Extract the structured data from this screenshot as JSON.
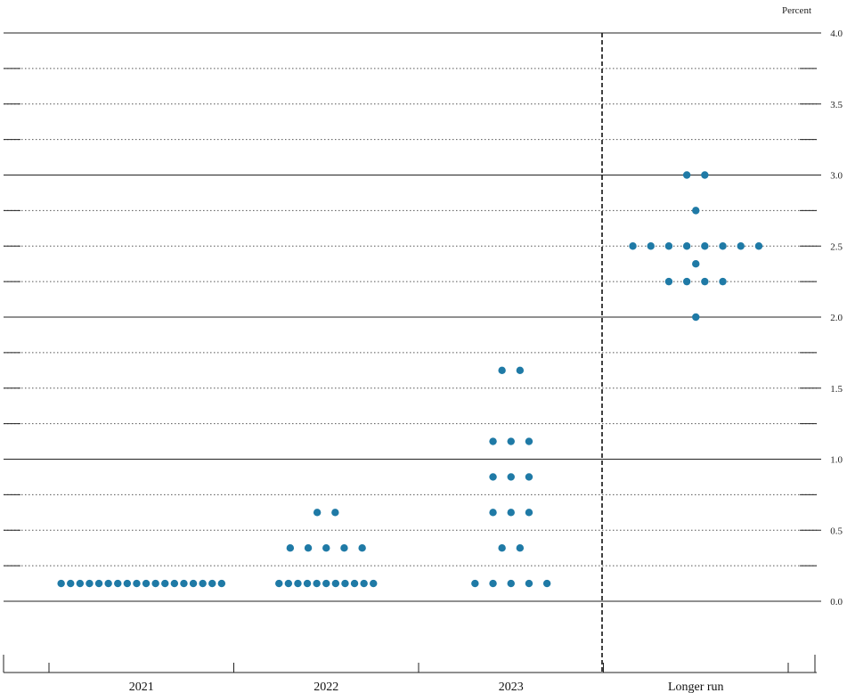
{
  "chart_data": {
    "type": "scatter",
    "unit_label": "Percent",
    "categories": [
      "2021",
      "2022",
      "2023",
      "Longer run"
    ],
    "ylim": [
      0,
      4.0
    ],
    "y_ticks": [
      "0.0",
      "0.5",
      "1.0",
      "1.5",
      "2.0",
      "2.5",
      "3.0",
      "3.5",
      "4.0"
    ],
    "dot_color": "#1f7aa6",
    "divider": "between 2023 and Longer run",
    "grid": true,
    "points": [
      {
        "category": "2021",
        "y": 0.125,
        "count": 18
      },
      {
        "category": "2022",
        "y": 0.125,
        "count": 11
      },
      {
        "category": "2022",
        "y": 0.375,
        "count": 5
      },
      {
        "category": "2022",
        "y": 0.625,
        "count": 2
      },
      {
        "category": "2023",
        "y": 0.125,
        "count": 5
      },
      {
        "category": "2023",
        "y": 0.375,
        "count": 2
      },
      {
        "category": "2023",
        "y": 0.625,
        "count": 3
      },
      {
        "category": "2023",
        "y": 0.875,
        "count": 3
      },
      {
        "category": "2023",
        "y": 1.125,
        "count": 3
      },
      {
        "category": "2023",
        "y": 1.625,
        "count": 2
      },
      {
        "category": "Longer run",
        "y": 2.0,
        "count": 1
      },
      {
        "category": "Longer run",
        "y": 2.25,
        "count": 4
      },
      {
        "category": "Longer run",
        "y": 2.375,
        "count": 1
      },
      {
        "category": "Longer run",
        "y": 2.5,
        "count": 8
      },
      {
        "category": "Longer run",
        "y": 2.75,
        "count": 1
      },
      {
        "category": "Longer run",
        "y": 3.0,
        "count": 2
      }
    ]
  }
}
